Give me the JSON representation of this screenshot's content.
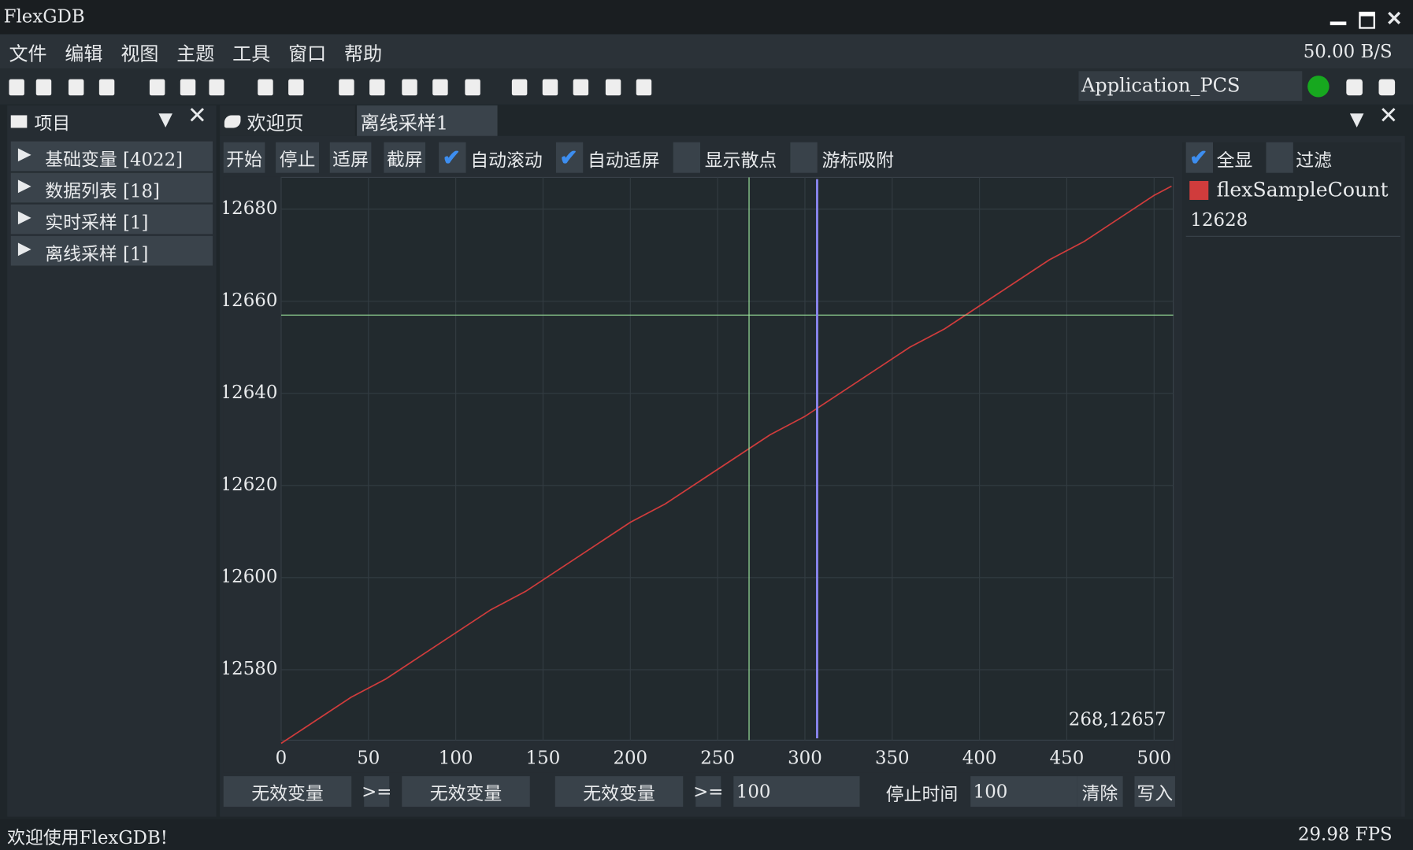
{
  "window": {
    "title": "FlexGDB",
    "rate": "50.00 B/S"
  },
  "menu": [
    "文件",
    "编辑",
    "视图",
    "主题",
    "工具",
    "窗口",
    "帮助"
  ],
  "toolbar": {
    "target": "Application_PCS"
  },
  "project": {
    "title": "项目",
    "items": [
      "基础变量 [4022]",
      "数据列表 [18]",
      "实时采样 [1]",
      "离线采样 [1]"
    ]
  },
  "tabs": [
    "欢迎页",
    "离线采样1"
  ],
  "plot_controls": {
    "buttons": [
      "开始",
      "停止",
      "适屏",
      "截屏"
    ],
    "options": [
      {
        "label": "自动滚动",
        "checked": true
      },
      {
        "label": "自动适屏",
        "checked": true
      },
      {
        "label": "显示散点",
        "checked": false
      },
      {
        "label": "游标吸附",
        "checked": false
      }
    ]
  },
  "chart_data": {
    "type": "line",
    "x": [
      0,
      20,
      40,
      60,
      80,
      100,
      120,
      140,
      160,
      180,
      200,
      220,
      240,
      260,
      280,
      300,
      320,
      340,
      360,
      380,
      400,
      420,
      440,
      460,
      480,
      500,
      510
    ],
    "series": [
      {
        "name": "flexSampleCount",
        "color": "#d03c3c",
        "values": [
          12564,
          12569,
          12574,
          12578,
          12583,
          12588,
          12593,
          12597,
          12602,
          12607,
          12612,
          12616,
          12621,
          12626,
          12631,
          12635,
          12640,
          12645,
          12650,
          12654,
          12659,
          12664,
          12669,
          12673,
          12678,
          12683,
          12685
        ]
      }
    ],
    "xlim": [
      0,
      511
    ],
    "ylim": [
      12564.7,
      12686.9
    ],
    "xticks": [
      0,
      50,
      100,
      150,
      200,
      250,
      300,
      350,
      400,
      450,
      500
    ],
    "yticks": [
      12580,
      12600,
      12620,
      12640,
      12660,
      12680
    ],
    "grid": true,
    "crosshair": {
      "x": 268,
      "y": 12657,
      "label": "268,12657"
    },
    "marker_x": 307
  },
  "legend": {
    "options": [
      {
        "label": "全显",
        "checked": true
      },
      {
        "label": "过滤",
        "checked": false
      }
    ],
    "value": 12628
  },
  "trigger": {
    "var_a": "无效变量",
    "op_a": ">=",
    "var_b": "无效变量",
    "var_c": "无效变量",
    "op_c": ">=",
    "threshold": 100,
    "stop_label": "停止时间",
    "stop_time": 100,
    "clear": "清除",
    "write": "写入"
  },
  "status": {
    "message": "欢迎使用FlexGDB!",
    "fps": "29.98 FPS"
  }
}
